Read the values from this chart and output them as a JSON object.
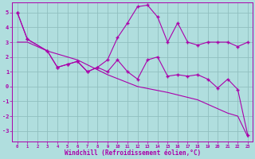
{
  "xlabel": "Windchill (Refroidissement éolien,°C)",
  "xlim": [
    -0.5,
    23.5
  ],
  "ylim": [
    -3.7,
    5.7
  ],
  "yticks": [
    -3,
    -2,
    -1,
    0,
    1,
    2,
    3,
    4,
    5
  ],
  "xticks": [
    0,
    1,
    2,
    3,
    4,
    5,
    6,
    7,
    8,
    9,
    10,
    11,
    12,
    13,
    14,
    15,
    16,
    17,
    18,
    19,
    20,
    21,
    22,
    23
  ],
  "bg_color": "#b0dede",
  "grid_color": "#90bfbf",
  "line_color": "#aa00aa",
  "line1_x": [
    0,
    1,
    3,
    4,
    5,
    6,
    7,
    8,
    9,
    10,
    11,
    12,
    13,
    14,
    15,
    16,
    17,
    18,
    19,
    20,
    21,
    22,
    23
  ],
  "line1_y": [
    5.0,
    3.2,
    2.4,
    1.3,
    1.5,
    1.7,
    1.0,
    1.3,
    1.8,
    3.3,
    4.3,
    5.4,
    5.5,
    4.7,
    3.0,
    4.3,
    3.0,
    2.8,
    3.0,
    3.0,
    3.0,
    2.7,
    3.0
  ],
  "line2_x": [
    0,
    1,
    3,
    4,
    5,
    6,
    7,
    8,
    9,
    10,
    11,
    12,
    13,
    14,
    15,
    16,
    17,
    18,
    19,
    20,
    21,
    22,
    23
  ],
  "line2_y": [
    5.0,
    3.2,
    2.4,
    1.3,
    1.5,
    1.7,
    1.0,
    1.3,
    1.0,
    1.8,
    1.0,
    0.5,
    1.8,
    2.0,
    0.7,
    0.8,
    0.7,
    0.8,
    0.5,
    -0.1,
    0.5,
    -0.2,
    -3.3
  ],
  "line3_x": [
    0,
    1,
    3,
    6,
    9,
    12,
    15,
    18,
    21,
    22,
    23
  ],
  "line3_y": [
    3.0,
    3.0,
    2.4,
    1.8,
    0.8,
    0.0,
    -0.4,
    -0.9,
    -1.8,
    -2.0,
    -3.4
  ]
}
